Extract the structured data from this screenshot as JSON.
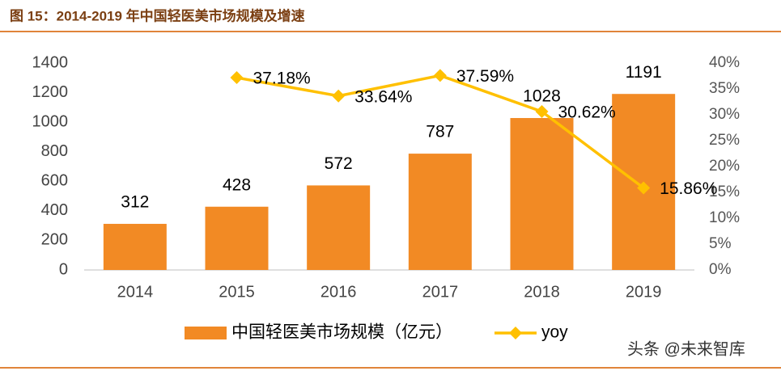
{
  "chart_data": {
    "type": "bar-line",
    "title": "图 15：2014-2019 年中国轻医美市场规模及增速",
    "categories": [
      "2014",
      "2015",
      "2016",
      "2017",
      "2018",
      "2019"
    ],
    "series": [
      {
        "name": "中国轻医美市场规模（亿元）",
        "type": "bar",
        "color": "#F28A24",
        "values": [
          312,
          428,
          572,
          787,
          1028,
          1191
        ]
      },
      {
        "name": "yoy",
        "type": "line",
        "axis": "y2",
        "color": "#FFC000",
        "values": [
          null,
          37.18,
          33.64,
          37.59,
          30.62,
          15.86
        ],
        "value_labels": [
          null,
          "37.18%",
          "33.64%",
          "37.59%",
          "30.62%",
          "15.86%"
        ]
      }
    ],
    "ylim": [
      0,
      1400
    ],
    "yticks": [
      0,
      200,
      400,
      600,
      800,
      1000,
      1200,
      1400
    ],
    "y2lim": [
      0,
      40
    ],
    "y2ticks": [
      {
        "value": 0,
        "label": "0%"
      },
      {
        "value": 5,
        "label": "5%"
      },
      {
        "value": 10,
        "label": "10%"
      },
      {
        "value": 15,
        "label": "15%"
      },
      {
        "value": 20,
        "label": "20%"
      },
      {
        "value": 25,
        "label": "25%"
      },
      {
        "value": 30,
        "label": "30%"
      },
      {
        "value": 35,
        "label": "35%"
      },
      {
        "value": 40,
        "label": "40%"
      }
    ],
    "legend": "bottom",
    "watermark": "头条 @未来智库"
  }
}
